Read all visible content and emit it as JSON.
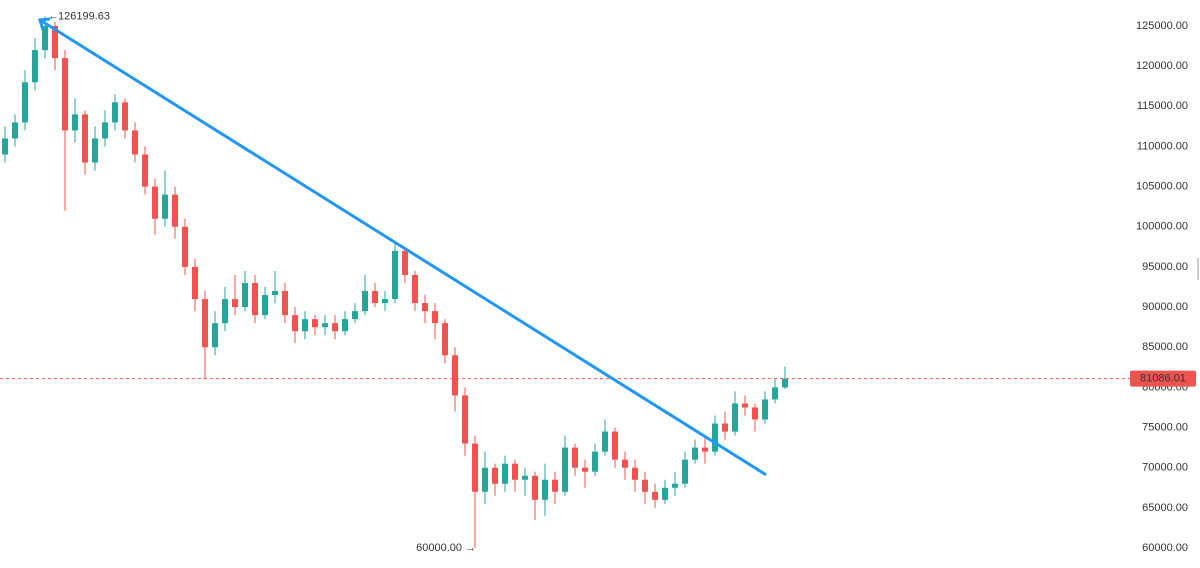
{
  "chart_data": {
    "type": "candlestick",
    "up_color": "#26a69a",
    "down_color": "#ef5350",
    "trendline_color": "#2196f3",
    "ylim": [
      57510,
      128240
    ],
    "yticks": [
      {
        "value": 60000,
        "label": "60000.00"
      },
      {
        "value": 65000,
        "label": "65000.00"
      },
      {
        "value": 70000,
        "label": "70000.00"
      },
      {
        "value": 75000,
        "label": "75000.00"
      },
      {
        "value": 80000,
        "label": "80000.00"
      },
      {
        "value": 85000,
        "label": "85000.00"
      },
      {
        "value": 90000,
        "label": "90000.00"
      },
      {
        "value": 95000,
        "label": "95000.00"
      },
      {
        "value": 100000,
        "label": "100000.00"
      },
      {
        "value": 105000,
        "label": "105000.00"
      },
      {
        "value": 110000,
        "label": "110000.00"
      },
      {
        "value": 115000,
        "label": "115000.00"
      },
      {
        "value": 120000,
        "label": "120000.00"
      },
      {
        "value": 125000,
        "label": "125000.00"
      }
    ],
    "open": [
      109000,
      111000,
      113000,
      118000,
      122000,
      125000,
      121000,
      112000,
      114000,
      108000,
      111000,
      113000,
      115500,
      112000,
      109000,
      105000,
      101000,
      104000,
      100000,
      95000,
      91000,
      85000,
      88000,
      91000,
      90000,
      93000,
      89000,
      91500,
      92000,
      89000,
      87000,
      88500,
      87500,
      88000,
      87000,
      88500,
      89500,
      92000,
      90500,
      91000,
      97000,
      94000,
      90500,
      89500,
      88000,
      84000,
      79000,
      73000,
      67000,
      70000,
      68000,
      70500,
      68500,
      69000,
      66000,
      68500,
      67000,
      72500,
      70000,
      69500,
      72000,
      74500,
      71000,
      70000,
      68500,
      67000,
      66000,
      67500,
      68000,
      71000,
      72500,
      72000,
      75500,
      74500,
      78000,
      77500,
      76000,
      78500,
      80000
    ],
    "high": [
      112500,
      114000,
      119500,
      123500,
      126199.63,
      125500,
      122000,
      116000,
      114500,
      112500,
      114500,
      116500,
      116000,
      113000,
      110000,
      106000,
      107000,
      105000,
      101000,
      96000,
      92000,
      89500,
      92500,
      94000,
      94500,
      94000,
      92500,
      94500,
      93000,
      90000,
      89500,
      89000,
      89000,
      89000,
      89500,
      90500,
      94000,
      93000,
      92000,
      98000,
      97500,
      94500,
      91500,
      90500,
      88500,
      85000,
      80000,
      74000,
      72000,
      70500,
      71500,
      71000,
      70000,
      69500,
      70500,
      69500,
      74000,
      73000,
      71000,
      73000,
      76000,
      75000,
      72000,
      71000,
      69500,
      68000,
      68500,
      69500,
      72000,
      73500,
      74000,
      76500,
      77000,
      79500,
      79000,
      78000,
      79500,
      81000,
      82600
    ],
    "low": [
      108000,
      110000,
      112000,
      117000,
      121000,
      119500,
      102000,
      110500,
      106500,
      107000,
      110000,
      112000,
      111000,
      108000,
      104000,
      99000,
      100000,
      98500,
      94000,
      89500,
      81000,
      84000,
      87000,
      89000,
      89500,
      88000,
      88500,
      90500,
      88000,
      85500,
      86000,
      86500,
      86500,
      86000,
      86500,
      88000,
      89000,
      90000,
      89500,
      90500,
      93000,
      89500,
      88000,
      86000,
      83000,
      77000,
      71500,
      60000,
      65500,
      66500,
      67000,
      67000,
      66500,
      63500,
      64000,
      65500,
      66500,
      69000,
      67500,
      69000,
      71500,
      70000,
      68500,
      67000,
      65500,
      65000,
      65500,
      66500,
      67500,
      70500,
      70500,
      71500,
      73500,
      74000,
      76500,
      74500,
      75500,
      78000,
      79800
    ],
    "close": [
      111000,
      113000,
      118000,
      122000,
      125000,
      121000,
      112000,
      114000,
      108000,
      111000,
      113000,
      115500,
      112000,
      109000,
      105000,
      101000,
      104000,
      100000,
      95000,
      91000,
      85000,
      88000,
      91000,
      90000,
      93000,
      89000,
      91500,
      92000,
      89000,
      87000,
      88500,
      87500,
      88000,
      87000,
      88500,
      89500,
      92000,
      90500,
      91000,
      97000,
      94000,
      90500,
      89500,
      88000,
      84000,
      79000,
      73000,
      67000,
      70000,
      68000,
      70500,
      68500,
      69000,
      66000,
      68500,
      67000,
      72500,
      70000,
      69500,
      72000,
      74500,
      71000,
      70000,
      68500,
      67000,
      66000,
      67500,
      68000,
      71000,
      72500,
      72000,
      75500,
      74500,
      78000,
      77500,
      76000,
      78500,
      80000,
      81086.01
    ],
    "trendline": [
      125750,
      69200
    ],
    "last_price": 81086.01,
    "high_label": {
      "value": 126199.63,
      "label": "126199.63"
    },
    "low_label": {
      "value": 60000,
      "label": "60000.00"
    }
  }
}
